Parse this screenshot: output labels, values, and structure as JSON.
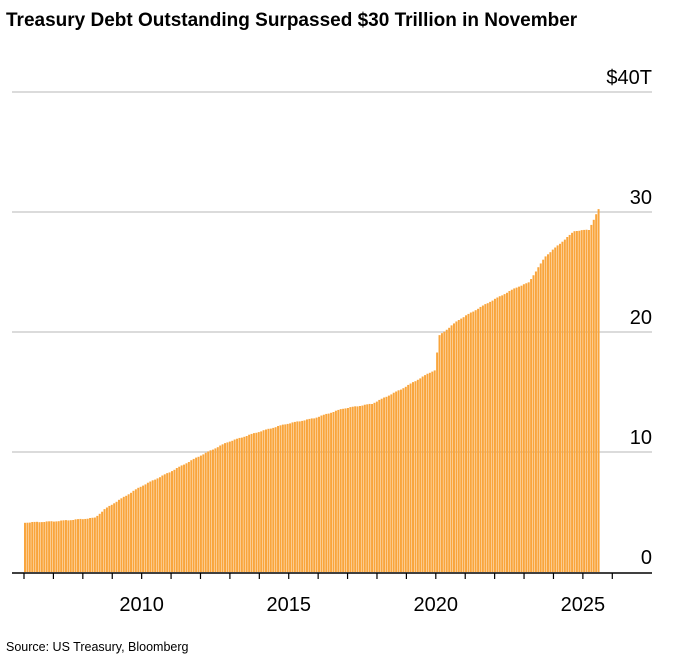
{
  "chart_data": {
    "type": "bar",
    "title": "Treasury Debt Outstanding Surpassed $30 Trillion in November",
    "source": "Source: US Treasury, Bloomberg",
    "bar_color": "#f9a53c",
    "grid": true,
    "ylim": [
      0,
      40
    ],
    "xlim": [
      2006.0,
      2026.5
    ],
    "y_tick_labels": [
      "0",
      "10",
      "20",
      "30",
      "$40T"
    ],
    "y_tick_values": [
      0,
      10,
      20,
      30,
      40
    ],
    "x_tick_labels": [
      "2010",
      "2015",
      "2020",
      "2025"
    ],
    "x_tick_values": [
      2010,
      2015,
      2020,
      2025
    ],
    "x_start": "2006-01",
    "x_end": "2025-11",
    "monthly_anchors": [
      {
        "x": "2006-01",
        "y": 4.1
      },
      {
        "x": "2007-01",
        "y": 4.2
      },
      {
        "x": "2008-01",
        "y": 4.4
      },
      {
        "x": "2008-06",
        "y": 4.5
      },
      {
        "x": "2008-10",
        "y": 5.2
      },
      {
        "x": "2009-01",
        "y": 5.6
      },
      {
        "x": "2010-01",
        "y": 7.1
      },
      {
        "x": "2011-01",
        "y": 8.3
      },
      {
        "x": "2012-01",
        "y": 9.6
      },
      {
        "x": "2013-01",
        "y": 10.8
      },
      {
        "x": "2014-01",
        "y": 11.6
      },
      {
        "x": "2015-01",
        "y": 12.3
      },
      {
        "x": "2016-01",
        "y": 12.8
      },
      {
        "x": "2017-01",
        "y": 13.6
      },
      {
        "x": "2018-01",
        "y": 14.0
      },
      {
        "x": "2019-01",
        "y": 15.2
      },
      {
        "x": "2020-01",
        "y": 16.6
      },
      {
        "x": "2020-03",
        "y": 16.8
      },
      {
        "x": "2020-05",
        "y": 19.7
      },
      {
        "x": "2021-01",
        "y": 21.0
      },
      {
        "x": "2022-01",
        "y": 22.4
      },
      {
        "x": "2023-01",
        "y": 23.7
      },
      {
        "x": "2023-06",
        "y": 24.1
      },
      {
        "x": "2024-01",
        "y": 26.3
      },
      {
        "x": "2025-01",
        "y": 28.4
      },
      {
        "x": "2025-07",
        "y": 28.5
      },
      {
        "x": "2025-11",
        "y": 30.2
      }
    ]
  }
}
